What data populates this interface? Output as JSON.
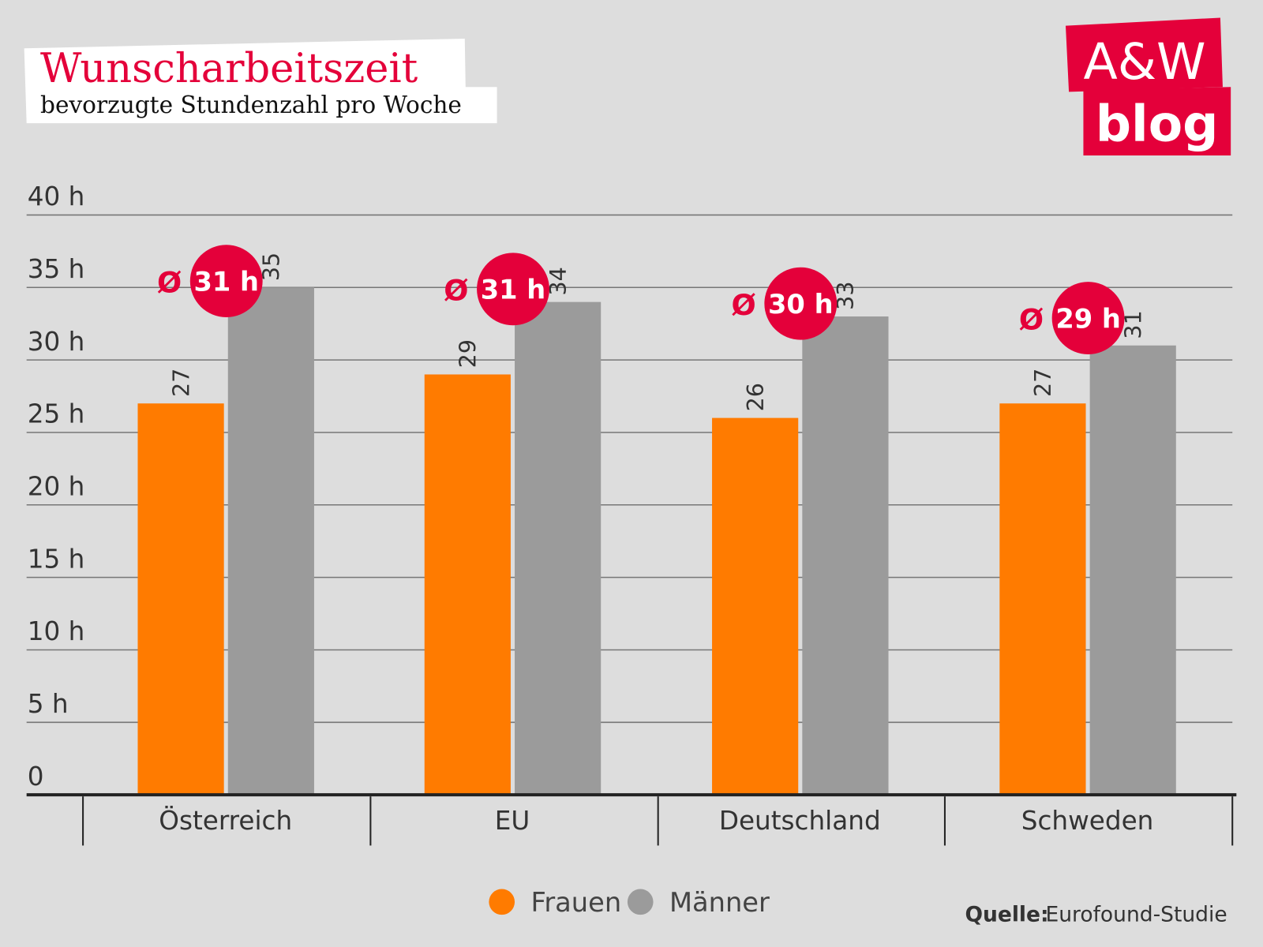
{
  "chart_data": {
    "type": "bar",
    "title": "Wunscharbeitszeit",
    "subtitle": "bevorzugte Stundenzahl pro Woche",
    "categories": [
      "Österreich",
      "EU",
      "Deutschland",
      "Schweden"
    ],
    "series": [
      {
        "name": "Frauen",
        "values": [
          27,
          29,
          26,
          27
        ],
        "color": "#ff7b00"
      },
      {
        "name": "Männer",
        "values": [
          35,
          34,
          33,
          31
        ],
        "color": "#9b9b9b"
      }
    ],
    "averages": [
      {
        "symbol": "Ø",
        "label": "31 h",
        "value": 31
      },
      {
        "symbol": "Ø",
        "label": "31 h",
        "value": 31
      },
      {
        "symbol": "Ø",
        "label": "30 h",
        "value": 30
      },
      {
        "symbol": "Ø",
        "label": "29 h",
        "value": 29
      }
    ],
    "yticks": [
      "0",
      "5 h",
      "10 h",
      "15 h",
      "20 h",
      "25 h",
      "30 h",
      "35 h",
      "40 h"
    ],
    "ylim": [
      0,
      40
    ],
    "grid": true,
    "legend_placement": "bottom-center",
    "accent_color": "#e4003a"
  },
  "logo": {
    "line1": "A&W",
    "line2": "blog"
  },
  "source": {
    "label": "Quelle:",
    "value": "Eurofound-Studie"
  }
}
